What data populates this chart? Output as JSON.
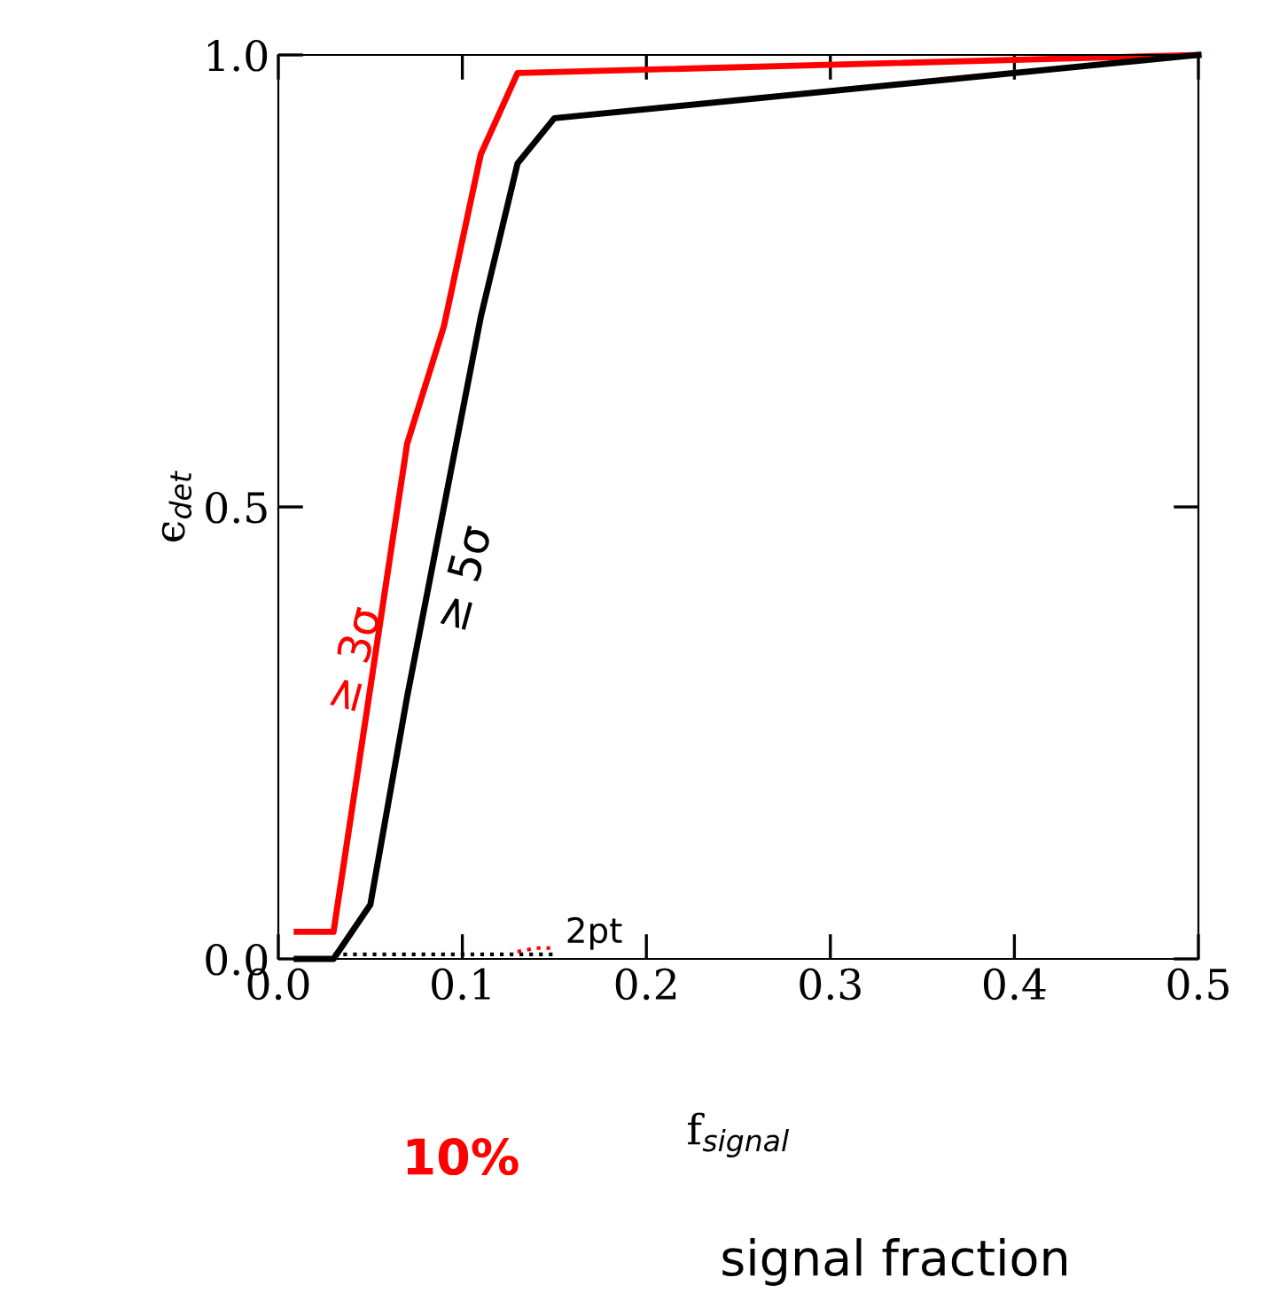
{
  "chart_data": {
    "type": "line",
    "xlabel": "f$_{signal}$",
    "ylabel": "ϵ$_{det}$",
    "xlim": [
      0,
      0.5
    ],
    "xticks": [
      {
        "value": 0,
        "label": "0.0"
      },
      0.1,
      0.2,
      0.3,
      0.4,
      0.5
    ],
    "ylim": [
      0,
      1
    ],
    "yticks": [
      {
        "value": 0,
        "label": "0.0"
      },
      0.5,
      {
        "value": 1,
        "label": "1.0"
      }
    ],
    "grid": false,
    "legend": false,
    "marker": "none",
    "series": [
      {
        "name": "≥ 3σ",
        "color": "#ff0000",
        "line_style": "solid",
        "x": [
          0.01,
          0.03,
          0.07,
          0.09,
          0.11,
          0.13,
          0.5
        ],
        "values": [
          0.03,
          0.03,
          0.57,
          0.7,
          0.89,
          0.98,
          1.0
        ]
      },
      {
        "name": "≥ 5σ",
        "color": "#000000",
        "line_style": "solid",
        "x": [
          0.01,
          0.03,
          0.05,
          0.07,
          0.09,
          0.11,
          0.13,
          0.15,
          0.5
        ],
        "values": [
          0,
          0,
          0.06,
          0.29,
          0.5,
          0.71,
          0.88,
          0.93,
          1.0
        ]
      },
      {
        "color": "#000000",
        "line_style": "dotted",
        "x": [
          0.03,
          0.15
        ],
        "values": [
          0.005,
          0.005
        ]
      },
      {
        "color": "#ff0000",
        "line_style": "dotted",
        "x": [
          0.13,
          0.14,
          0.15
        ],
        "values": [
          0.008,
          0.012,
          0.012
        ]
      }
    ],
    "annotations": [
      {
        "text": "2pt",
        "x": 0.15,
        "y": 0.01
      },
      "10%",
      "signal fraction"
    ]
  }
}
